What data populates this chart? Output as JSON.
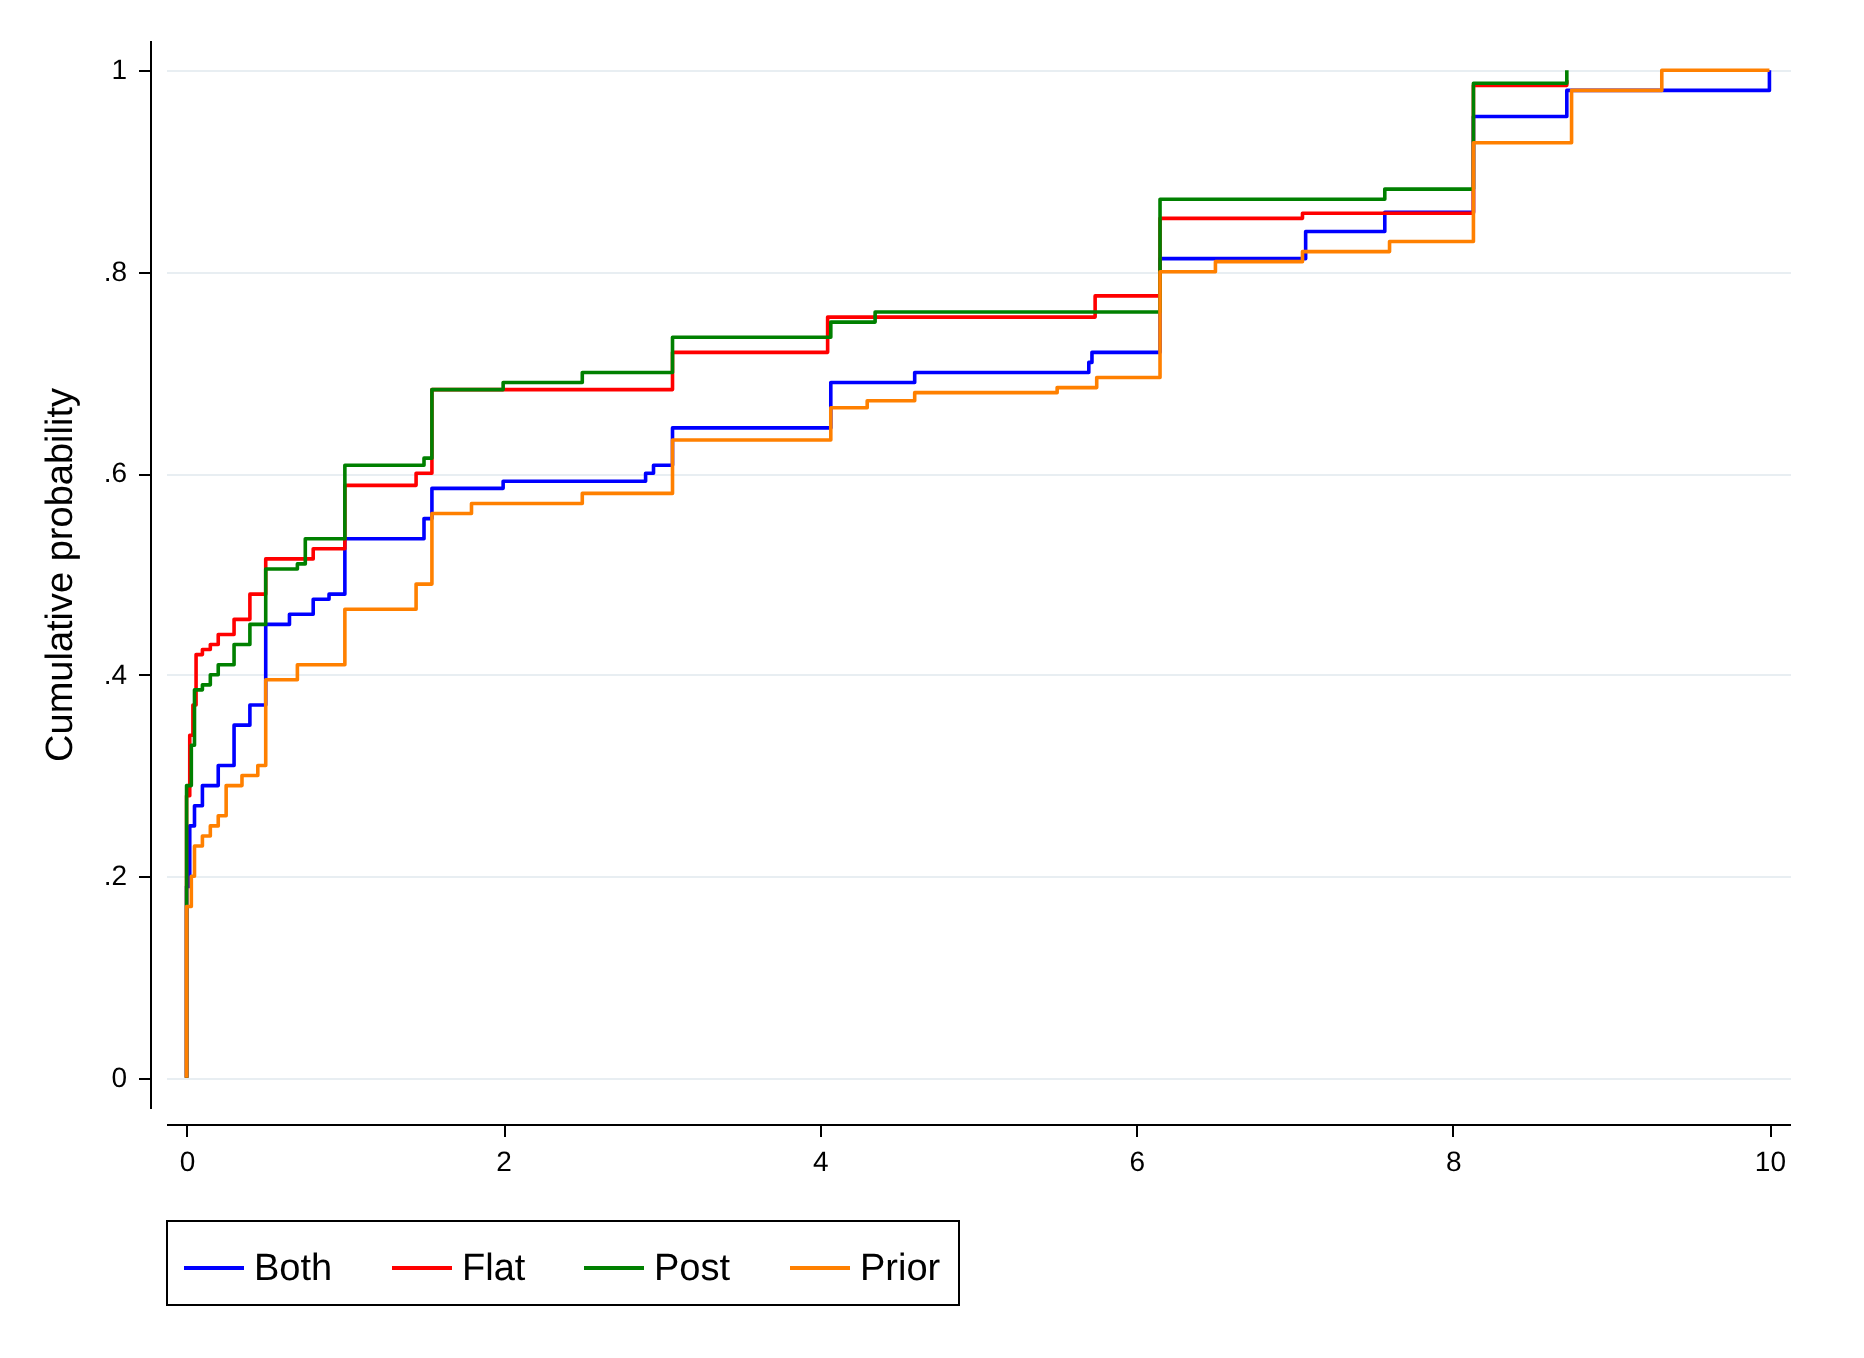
{
  "chart_data": {
    "type": "step",
    "ylabel": "Cumulative probability",
    "xlim": [
      -0.13,
      10.13
    ],
    "ylim": [
      -0.03,
      1.03
    ],
    "xticks": [
      0,
      2,
      4,
      6,
      8,
      10
    ],
    "yticks": [
      0,
      {
        "value": 0.2,
        "label": ".2"
      },
      {
        "value": 0.4,
        "label": ".4"
      },
      {
        "value": 0.6,
        "label": ".6"
      },
      {
        "value": 0.8,
        "label": ".8"
      },
      1
    ],
    "grid": "y",
    "legend": "bottom",
    "series": [
      {
        "name": "Both",
        "color": "#0000ff",
        "x": [
          0,
          0,
          0.02,
          0.05,
          0.1,
          0.2,
          0.3,
          0.4,
          0.5,
          0.65,
          0.8,
          0.9,
          1.0,
          1.5,
          1.55,
          2,
          2.9,
          2.95,
          3.07,
          4.07,
          4.6,
          5.7,
          5.72,
          6.15,
          7.07,
          7.57,
          8.13,
          8.72,
          10,
          10
        ],
        "values": [
          0,
          0.19,
          0.25,
          0.27,
          0.29,
          0.31,
          0.35,
          0.37,
          0.45,
          0.46,
          0.475,
          0.48,
          0.535,
          0.555,
          0.585,
          0.592,
          0.6,
          0.608,
          0.645,
          0.69,
          0.7,
          0.71,
          0.72,
          0.813,
          0.84,
          0.859,
          0.954,
          0.98,
          0.989,
          1
        ]
      },
      {
        "name": "Flat",
        "color": "#ff0000",
        "x": [
          0,
          0,
          0.02,
          0.04,
          0.06,
          0.1,
          0.15,
          0.2,
          0.3,
          0.4,
          0.5,
          0.8,
          1.0,
          1.45,
          1.55,
          3.07,
          4.05,
          5.74,
          6.15,
          7.05,
          8.13,
          8.72
        ],
        "values": [
          0,
          0.28,
          0.34,
          0.37,
          0.42,
          0.425,
          0.43,
          0.44,
          0.455,
          0.48,
          0.515,
          0.525,
          0.588,
          0.6,
          0.683,
          0.72,
          0.755,
          0.776,
          0.853,
          0.858,
          0.985,
          0.99
        ]
      },
      {
        "name": "Post",
        "color": "#008000",
        "x": [
          0,
          0,
          0.03,
          0.05,
          0.1,
          0.15,
          0.2,
          0.3,
          0.4,
          0.5,
          0.7,
          0.75,
          1.0,
          1.5,
          1.55,
          2,
          2.5,
          3.07,
          4.07,
          4.35,
          6.15,
          7.57,
          8.13,
          8.72,
          8.72
        ],
        "values": [
          0,
          0.29,
          0.33,
          0.385,
          0.39,
          0.4,
          0.41,
          0.43,
          0.45,
          0.505,
          0.51,
          0.535,
          0.608,
          0.615,
          0.683,
          0.69,
          0.7,
          0.735,
          0.75,
          0.76,
          0.872,
          0.882,
          0.987,
          0.99,
          1
        ]
      },
      {
        "name": "Prior",
        "color": "#ff8000",
        "x": [
          0,
          0,
          0.03,
          0.05,
          0.1,
          0.15,
          0.2,
          0.25,
          0.35,
          0.45,
          0.5,
          0.7,
          1.0,
          1.45,
          1.55,
          1.8,
          2.5,
          3.07,
          4.07,
          4.3,
          4.6,
          5.5,
          5.75,
          6.15,
          6.5,
          7.05,
          7.6,
          8.13,
          8.75,
          9.32,
          10
        ],
        "values": [
          0,
          0.17,
          0.2,
          0.23,
          0.24,
          0.25,
          0.26,
          0.29,
          0.3,
          0.31,
          0.395,
          0.41,
          0.465,
          0.49,
          0.56,
          0.57,
          0.58,
          0.633,
          0.665,
          0.672,
          0.68,
          0.685,
          0.695,
          0.8,
          0.81,
          0.82,
          0.83,
          0.928,
          0.98,
          1.0,
          1.0
        ]
      }
    ]
  }
}
